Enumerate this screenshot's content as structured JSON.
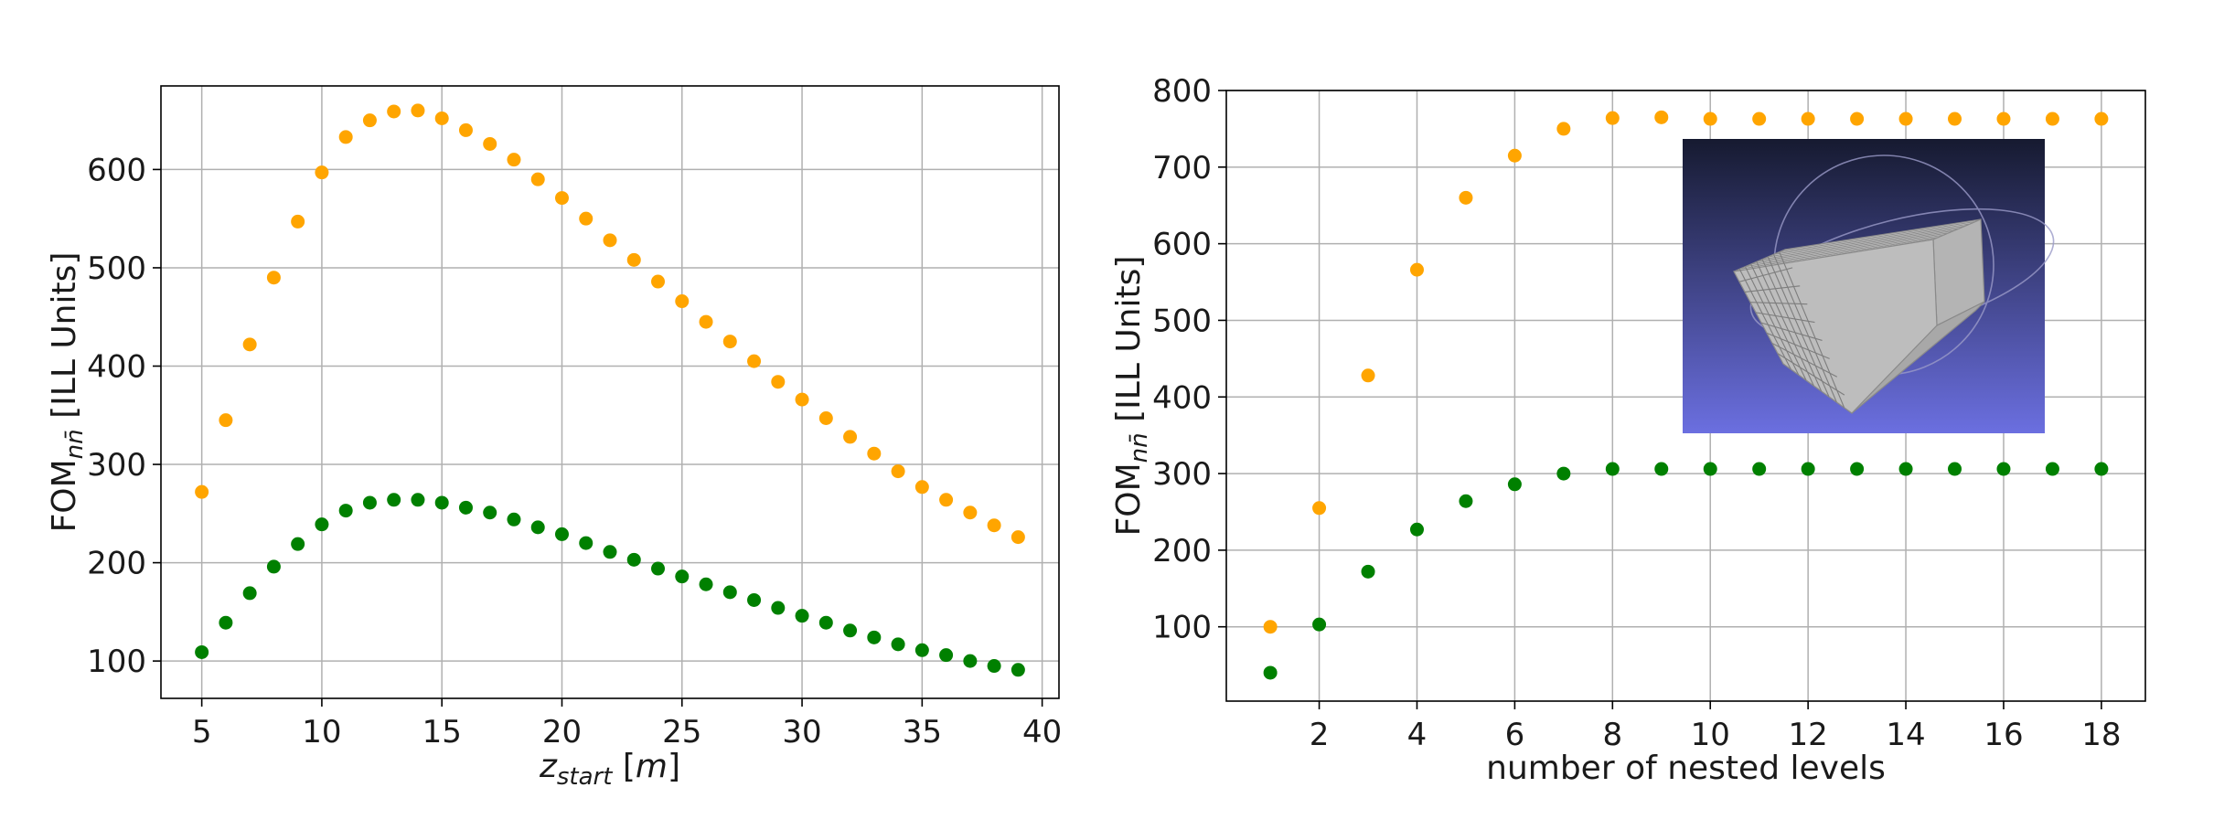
{
  "colors": {
    "series_orange": "#ffa500",
    "series_green": "#008000",
    "grid": "#b0b0b0",
    "axes": "#000000",
    "inset_bg_top": "#161a30",
    "inset_bg_bottom": "#6b6fe0",
    "inset_object": "#bdbdbd"
  },
  "chart_data": [
    {
      "type": "scatter",
      "title": "",
      "xlabel": "z",
      "xlabel_sub": "start",
      "xlabel_unit": "[m]",
      "ylabel": "FOM",
      "ylabel_sub": "nn̄",
      "ylabel_unit": "[ILL Units]",
      "xlim": [
        3.3,
        40.7
      ],
      "ylim": [
        62,
        685
      ],
      "xticks": [
        5,
        10,
        15,
        20,
        25,
        30,
        35,
        40
      ],
      "yticks": [
        100,
        200,
        300,
        400,
        500,
        600
      ],
      "grid": true,
      "series": [
        {
          "color": "#ffa500",
          "x": [
            5,
            6,
            7,
            8,
            9,
            10,
            11,
            12,
            13,
            14,
            15,
            16,
            17,
            18,
            19,
            20,
            21,
            22,
            23,
            24,
            25,
            26,
            27,
            28,
            29,
            30,
            31,
            32,
            33,
            34,
            35,
            36,
            37,
            38,
            39
          ],
          "y": [
            272,
            345,
            422,
            490,
            547,
            597,
            633,
            650,
            659,
            660,
            652,
            640,
            626,
            610,
            590,
            571,
            550,
            528,
            508,
            486,
            466,
            445,
            425,
            405,
            384,
            366,
            347,
            328,
            311,
            293,
            277,
            264,
            251,
            238,
            226
          ]
        },
        {
          "color": "#008000",
          "x": [
            5,
            6,
            7,
            8,
            9,
            10,
            11,
            12,
            13,
            14,
            15,
            16,
            17,
            18,
            19,
            20,
            21,
            22,
            23,
            24,
            25,
            26,
            27,
            28,
            29,
            30,
            31,
            32,
            33,
            34,
            35,
            36,
            37,
            38,
            39
          ],
          "y": [
            109,
            139,
            169,
            196,
            219,
            239,
            253,
            261,
            264,
            264,
            261,
            256,
            251,
            244,
            236,
            229,
            220,
            211,
            203,
            194,
            186,
            178,
            170,
            162,
            154,
            146,
            139,
            131,
            124,
            117,
            111,
            106,
            100,
            95,
            91
          ]
        }
      ]
    },
    {
      "type": "scatter",
      "title": "",
      "xlabel": "number of nested levels",
      "ylabel": "FOM",
      "ylabel_sub": "nn̄",
      "ylabel_unit": "[ILL Units]",
      "xlim": [
        0.1,
        18.9
      ],
      "ylim": [
        3,
        800
      ],
      "xticks": [
        2,
        4,
        6,
        8,
        10,
        12,
        14,
        16,
        18
      ],
      "yticks": [
        100,
        200,
        300,
        400,
        500,
        600,
        700,
        800
      ],
      "grid": true,
      "inset": "3d-nested-guide-render",
      "series": [
        {
          "color": "#ffa500",
          "x": [
            1,
            2,
            3,
            4,
            5,
            6,
            7,
            8,
            9,
            10,
            11,
            12,
            13,
            14,
            15,
            16,
            17,
            18
          ],
          "y": [
            100,
            255,
            428,
            566,
            660,
            715,
            750,
            764,
            765,
            763,
            763,
            763,
            763,
            763,
            763,
            763,
            763,
            763
          ]
        },
        {
          "color": "#008000",
          "x": [
            1,
            2,
            3,
            4,
            5,
            6,
            7,
            8,
            9,
            10,
            11,
            12,
            13,
            14,
            15,
            16,
            17,
            18
          ],
          "y": [
            40,
            103,
            172,
            227,
            264,
            286,
            300,
            306,
            306,
            306,
            306,
            306,
            306,
            306,
            306,
            306,
            306,
            306
          ]
        }
      ]
    }
  ]
}
